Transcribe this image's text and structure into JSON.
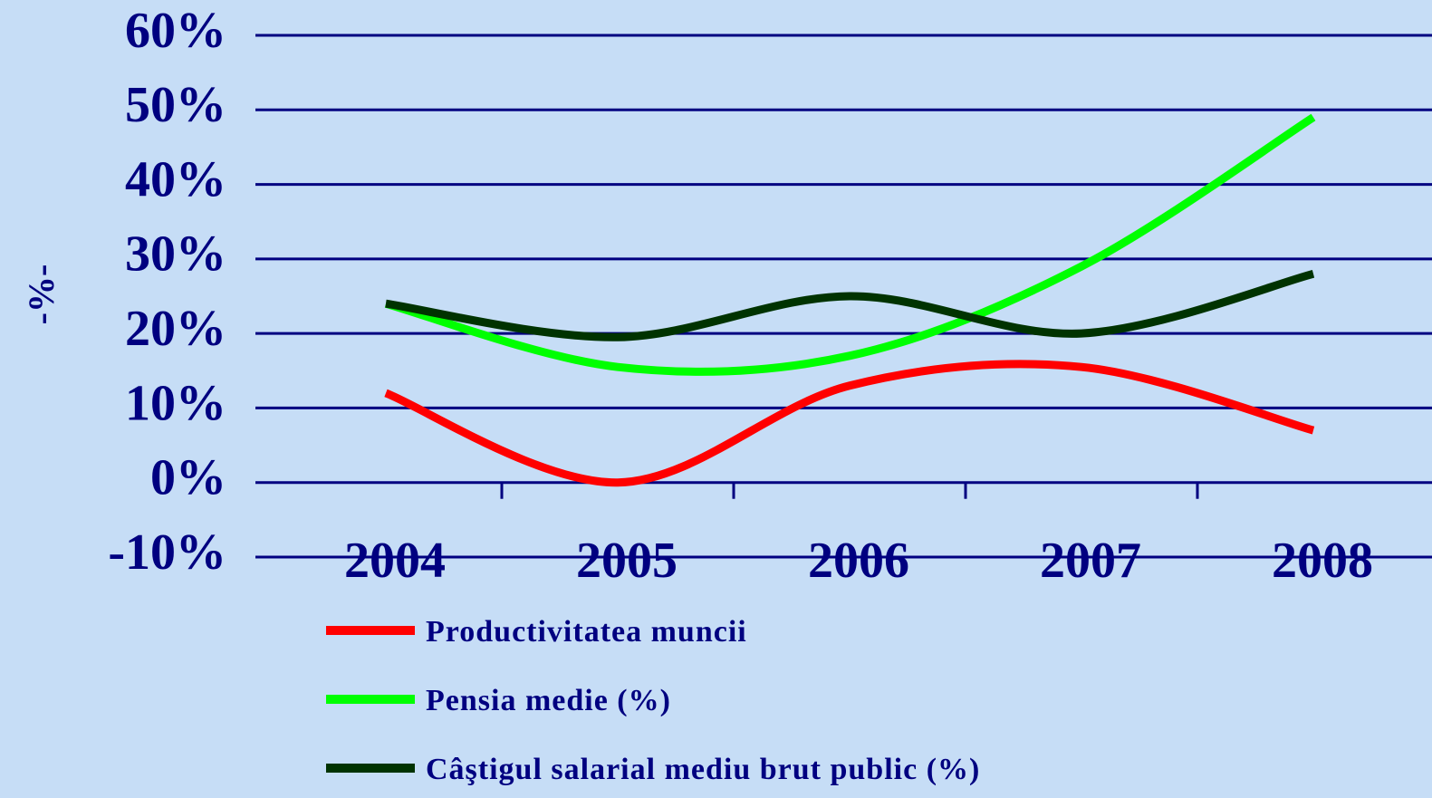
{
  "chart_data": {
    "type": "line",
    "y_label": "-%-",
    "categories": [
      "2004",
      "2005",
      "2006",
      "2007",
      "2008"
    ],
    "series": [
      {
        "name": "Productivitatea muncii",
        "color": "#ff0000",
        "values": [
          12,
          0,
          13,
          15.5,
          7
        ]
      },
      {
        "name": "Pensia medie (%)",
        "color": "#00ff00",
        "values": [
          24,
          15.5,
          17,
          29,
          49
        ]
      },
      {
        "name": "Câştigul salarial mediu brut public (%)",
        "color": "#003300",
        "values": [
          24,
          19.5,
          25,
          20,
          28
        ]
      }
    ],
    "ylim": [
      -10,
      60
    ],
    "yticks": [
      {
        "value": -10,
        "label": "-10%"
      },
      {
        "value": 0,
        "label": "0%"
      },
      {
        "value": 10,
        "label": "10%"
      },
      {
        "value": 20,
        "label": "20%"
      },
      {
        "value": 30,
        "label": "30%"
      },
      {
        "value": 40,
        "label": "40%"
      },
      {
        "value": 50,
        "label": "50%"
      },
      {
        "value": 60,
        "label": "60%"
      }
    ],
    "grid": true,
    "legend": "bottom"
  }
}
